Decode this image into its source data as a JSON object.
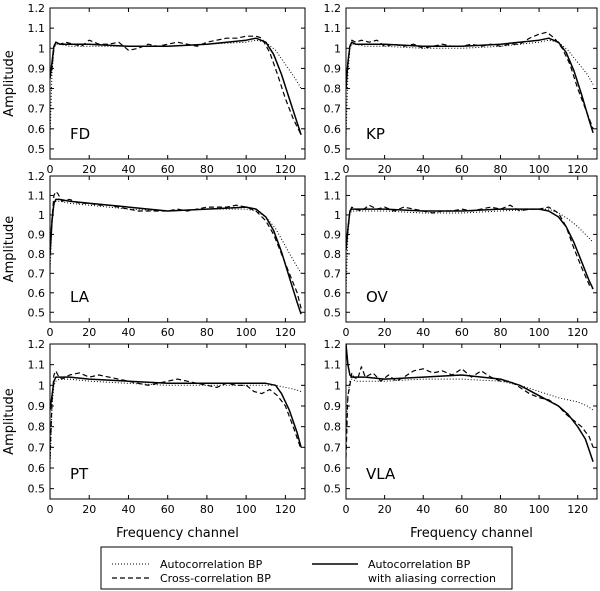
{
  "figure": {
    "xlabel": "Frequency channel",
    "ylabel": "Amplitude",
    "x_ticks": [
      0,
      20,
      40,
      60,
      80,
      100,
      120
    ],
    "y_ticks": [
      0.5,
      0.6,
      0.7,
      0.8,
      0.9,
      1,
      1.1,
      1.2
    ],
    "y_tick_labels": [
      "0.5",
      "0.6",
      "0.7",
      "0.8",
      "0.9",
      "1",
      "1.1",
      "1.2"
    ],
    "xlim": [
      0,
      130
    ],
    "ylim": [
      0.45,
      1.2
    ]
  },
  "legend": {
    "items": [
      {
        "key": "auto",
        "label": "Autocorrelation BP",
        "style": "dotted"
      },
      {
        "key": "cross",
        "label": "Cross-correlation BP",
        "style": "dashed"
      },
      {
        "key": "alias",
        "label": "Autocorrelation BP",
        "label2": "with aliasing correction",
        "style": "solid"
      }
    ]
  },
  "chart_data": [
    {
      "type": "line",
      "station": "FD",
      "xlabel": "",
      "ylabel": "Amplitude",
      "xlim": [
        0,
        130
      ],
      "ylim": [
        0.45,
        1.2
      ],
      "series": [
        {
          "name": "Autocorrelation BP",
          "x": [
            0,
            1,
            2,
            3,
            5,
            10,
            20,
            40,
            60,
            80,
            100,
            105,
            110,
            115,
            120,
            125,
            128
          ],
          "y": [
            0.55,
            0.88,
            1.0,
            1.02,
            1.02,
            1.01,
            1.01,
            1.01,
            1.01,
            1.02,
            1.03,
            1.04,
            1.03,
            0.99,
            0.92,
            0.85,
            0.8
          ]
        },
        {
          "name": "Cross-correlation BP",
          "x": [
            0,
            1,
            2,
            3,
            5,
            8,
            12,
            16,
            20,
            25,
            30,
            35,
            40,
            45,
            50,
            55,
            60,
            65,
            70,
            75,
            80,
            85,
            90,
            95,
            100,
            105,
            108,
            112,
            116,
            120,
            124,
            128
          ],
          "y": [
            0.85,
            0.9,
            1.0,
            1.03,
            1.02,
            1.03,
            1.02,
            1.01,
            1.04,
            1.02,
            1.02,
            1.03,
            0.99,
            1.0,
            1.02,
            1.01,
            1.02,
            1.03,
            1.02,
            1.01,
            1.03,
            1.04,
            1.05,
            1.05,
            1.06,
            1.06,
            1.05,
            0.98,
            0.87,
            0.75,
            0.65,
            0.57
          ]
        },
        {
          "name": "Autocorrelation BP with aliasing correction",
          "x": [
            0,
            1,
            2,
            3,
            5,
            10,
            20,
            40,
            60,
            80,
            100,
            105,
            110,
            114,
            118,
            122,
            126,
            128
          ],
          "y": [
            0.85,
            0.93,
            1.01,
            1.03,
            1.02,
            1.02,
            1.02,
            1.01,
            1.01,
            1.02,
            1.04,
            1.05,
            1.03,
            0.97,
            0.87,
            0.75,
            0.63,
            0.57
          ]
        }
      ]
    },
    {
      "type": "line",
      "station": "KP",
      "xlabel": "",
      "ylabel": "",
      "xlim": [
        0,
        130
      ],
      "ylim": [
        0.45,
        1.2
      ],
      "series": [
        {
          "name": "Autocorrelation BP",
          "x": [
            0,
            1,
            2,
            3,
            5,
            10,
            20,
            40,
            60,
            80,
            100,
            105,
            110,
            115,
            120,
            125,
            128
          ],
          "y": [
            0.55,
            0.88,
            1.0,
            1.02,
            1.02,
            1.01,
            1.01,
            1.0,
            1.0,
            1.01,
            1.03,
            1.04,
            1.03,
            0.99,
            0.93,
            0.87,
            0.82
          ]
        },
        {
          "name": "Cross-correlation BP",
          "x": [
            0,
            1,
            2,
            3,
            5,
            8,
            12,
            16,
            20,
            25,
            30,
            35,
            40,
            45,
            50,
            55,
            60,
            65,
            70,
            75,
            80,
            85,
            90,
            95,
            100,
            104,
            108,
            112,
            116,
            120,
            124,
            128
          ],
          "y": [
            0.8,
            0.92,
            1.01,
            1.04,
            1.03,
            1.04,
            1.03,
            1.04,
            1.01,
            1.02,
            1.01,
            1.02,
            1.0,
            1.01,
            1.02,
            1.01,
            1.01,
            1.02,
            1.01,
            1.02,
            1.01,
            1.02,
            1.02,
            1.05,
            1.07,
            1.08,
            1.05,
            1.0,
            0.92,
            0.8,
            0.7,
            0.6
          ]
        },
        {
          "name": "Autocorrelation BP with aliasing correction",
          "x": [
            0,
            1,
            2,
            3,
            5,
            10,
            20,
            40,
            60,
            80,
            100,
            105,
            110,
            114,
            118,
            122,
            126,
            128
          ],
          "y": [
            0.8,
            0.93,
            1.01,
            1.03,
            1.02,
            1.02,
            1.02,
            1.01,
            1.01,
            1.02,
            1.04,
            1.05,
            1.03,
            0.98,
            0.89,
            0.77,
            0.64,
            0.58
          ]
        }
      ]
    },
    {
      "type": "line",
      "station": "LA",
      "xlabel": "",
      "ylabel": "Amplitude",
      "xlim": [
        0,
        130
      ],
      "ylim": [
        0.45,
        1.2
      ],
      "series": [
        {
          "name": "Autocorrelation BP",
          "x": [
            0,
            1,
            2,
            3,
            5,
            10,
            20,
            40,
            60,
            80,
            100,
            105,
            110,
            115,
            120,
            125,
            128
          ],
          "y": [
            0.7,
            0.95,
            1.05,
            1.07,
            1.07,
            1.06,
            1.05,
            1.03,
            1.02,
            1.03,
            1.03,
            1.02,
            0.99,
            0.93,
            0.84,
            0.75,
            0.7
          ]
        },
        {
          "name": "Cross-correlation BP",
          "x": [
            0,
            1,
            2,
            3,
            4,
            6,
            10,
            15,
            20,
            25,
            30,
            35,
            40,
            45,
            50,
            55,
            60,
            65,
            70,
            75,
            80,
            85,
            90,
            95,
            100,
            105,
            110,
            114,
            118,
            122,
            126,
            128
          ],
          "y": [
            0.8,
            0.98,
            1.1,
            1.12,
            1.11,
            1.07,
            1.08,
            1.06,
            1.06,
            1.05,
            1.05,
            1.04,
            1.03,
            1.02,
            1.02,
            1.02,
            1.02,
            1.03,
            1.02,
            1.03,
            1.04,
            1.04,
            1.04,
            1.05,
            1.04,
            1.02,
            0.97,
            0.9,
            0.8,
            0.7,
            0.6,
            0.52
          ]
        },
        {
          "name": "Autocorrelation BP with aliasing correction",
          "x": [
            0,
            1,
            2,
            3,
            5,
            10,
            20,
            40,
            60,
            80,
            100,
            105,
            110,
            114,
            118,
            122,
            126,
            128
          ],
          "y": [
            0.8,
            0.97,
            1.06,
            1.08,
            1.08,
            1.07,
            1.06,
            1.04,
            1.02,
            1.03,
            1.04,
            1.03,
            0.99,
            0.92,
            0.81,
            0.68,
            0.55,
            0.49
          ]
        }
      ]
    },
    {
      "type": "line",
      "station": "OV",
      "xlabel": "",
      "ylabel": "",
      "xlim": [
        0,
        130
      ],
      "ylim": [
        0.45,
        1.2
      ],
      "series": [
        {
          "name": "Autocorrelation BP",
          "x": [
            0,
            1,
            2,
            3,
            5,
            10,
            20,
            40,
            60,
            80,
            100,
            105,
            110,
            115,
            120,
            125,
            128
          ],
          "y": [
            0.6,
            0.9,
            1.01,
            1.02,
            1.02,
            1.02,
            1.02,
            1.01,
            1.01,
            1.02,
            1.03,
            1.03,
            1.01,
            0.98,
            0.94,
            0.89,
            0.86
          ]
        },
        {
          "name": "Cross-correlation BP",
          "x": [
            0,
            1,
            2,
            3,
            5,
            8,
            12,
            16,
            20,
            25,
            30,
            35,
            40,
            45,
            50,
            55,
            60,
            65,
            70,
            75,
            80,
            85,
            90,
            95,
            100,
            105,
            110,
            114,
            118,
            122,
            126,
            128
          ],
          "y": [
            0.82,
            0.92,
            1.02,
            1.04,
            1.03,
            1.02,
            1.05,
            1.03,
            1.04,
            1.02,
            1.04,
            1.03,
            1.02,
            1.01,
            1.02,
            1.02,
            1.03,
            1.02,
            1.03,
            1.04,
            1.03,
            1.05,
            1.02,
            1.03,
            1.03,
            1.04,
            1.01,
            0.94,
            0.83,
            0.73,
            0.64,
            0.62
          ]
        },
        {
          "name": "Autocorrelation BP with aliasing correction",
          "x": [
            0,
            1,
            2,
            3,
            5,
            10,
            20,
            40,
            60,
            80,
            100,
            105,
            110,
            114,
            118,
            122,
            126,
            128
          ],
          "y": [
            0.82,
            0.93,
            1.02,
            1.03,
            1.03,
            1.03,
            1.03,
            1.02,
            1.02,
            1.03,
            1.03,
            1.02,
            0.99,
            0.94,
            0.86,
            0.76,
            0.66,
            0.62
          ]
        }
      ]
    },
    {
      "type": "line",
      "station": "PT",
      "xlabel": "Frequency channel",
      "ylabel": "Amplitude",
      "xlim": [
        0,
        130
      ],
      "ylim": [
        0.45,
        1.2
      ],
      "series": [
        {
          "name": "Autocorrelation BP",
          "x": [
            0,
            1,
            2,
            3,
            5,
            10,
            20,
            40,
            60,
            80,
            100,
            110,
            115,
            120,
            125,
            128
          ],
          "y": [
            0.6,
            0.9,
            1.0,
            1.02,
            1.03,
            1.03,
            1.02,
            1.01,
            1.0,
            1.0,
            1.0,
            1.0,
            1.0,
            0.99,
            0.98,
            0.97
          ]
        },
        {
          "name": "Cross-correlation BP",
          "x": [
            0,
            1,
            2,
            3,
            4,
            6,
            10,
            15,
            20,
            25,
            30,
            35,
            40,
            45,
            50,
            55,
            60,
            65,
            70,
            75,
            80,
            85,
            90,
            95,
            100,
            104,
            108,
            112,
            116,
            120,
            124,
            128
          ],
          "y": [
            0.65,
            0.92,
            1.05,
            1.07,
            1.05,
            1.03,
            1.05,
            1.06,
            1.04,
            1.05,
            1.04,
            1.03,
            1.02,
            1.01,
            1.0,
            1.01,
            1.02,
            1.03,
            1.02,
            1.01,
            1.0,
            0.99,
            1.01,
            1.0,
            1.0,
            0.97,
            0.96,
            0.98,
            0.95,
            0.9,
            0.8,
            0.69
          ]
        },
        {
          "name": "Autocorrelation BP with aliasing correction",
          "x": [
            0,
            1,
            2,
            3,
            5,
            10,
            20,
            40,
            60,
            80,
            100,
            105,
            110,
            115,
            118,
            122,
            126,
            128
          ],
          "y": [
            0.88,
            0.95,
            1.02,
            1.04,
            1.04,
            1.04,
            1.03,
            1.02,
            1.01,
            1.01,
            1.01,
            1.01,
            1.01,
            1.0,
            0.96,
            0.88,
            0.77,
            0.7
          ]
        }
      ]
    },
    {
      "type": "line",
      "station": "VLA",
      "xlabel": "Frequency channel",
      "ylabel": "",
      "xlim": [
        0,
        130
      ],
      "ylim": [
        0.45,
        1.2
      ],
      "series": [
        {
          "name": "Autocorrelation BP",
          "x": [
            0,
            1,
            2,
            3,
            5,
            10,
            20,
            40,
            60,
            80,
            90,
            100,
            110,
            115,
            120,
            125,
            128
          ],
          "y": [
            0.8,
            0.95,
            1.02,
            1.03,
            1.02,
            1.02,
            1.02,
            1.03,
            1.03,
            1.02,
            1.0,
            0.97,
            0.94,
            0.93,
            0.92,
            0.9,
            0.88
          ]
        },
        {
          "name": "Cross-correlation BP",
          "x": [
            0,
            1,
            2,
            3,
            4,
            6,
            8,
            10,
            14,
            18,
            22,
            26,
            30,
            35,
            40,
            45,
            50,
            55,
            60,
            65,
            70,
            75,
            80,
            85,
            90,
            95,
            100,
            105,
            110,
            114,
            118,
            122,
            126,
            128
          ],
          "y": [
            0.65,
            0.95,
            1.0,
            1.06,
            1.04,
            1.03,
            1.09,
            1.04,
            1.06,
            1.02,
            1.05,
            1.02,
            1.04,
            1.07,
            1.08,
            1.06,
            1.07,
            1.05,
            1.08,
            1.04,
            1.07,
            1.04,
            1.02,
            1.02,
            0.99,
            0.96,
            0.94,
            0.93,
            0.9,
            0.86,
            0.83,
            0.8,
            0.75,
            0.7
          ]
        },
        {
          "name": "Autocorrelation BP with aliasing correction",
          "x": [
            0,
            1,
            2,
            3,
            5,
            10,
            20,
            40,
            60,
            80,
            90,
            100,
            110,
            115,
            120,
            124,
            128
          ],
          "y": [
            1.2,
            1.1,
            1.05,
            1.04,
            1.04,
            1.04,
            1.03,
            1.04,
            1.05,
            1.03,
            1.0,
            0.95,
            0.9,
            0.86,
            0.8,
            0.74,
            0.63
          ]
        }
      ]
    }
  ]
}
